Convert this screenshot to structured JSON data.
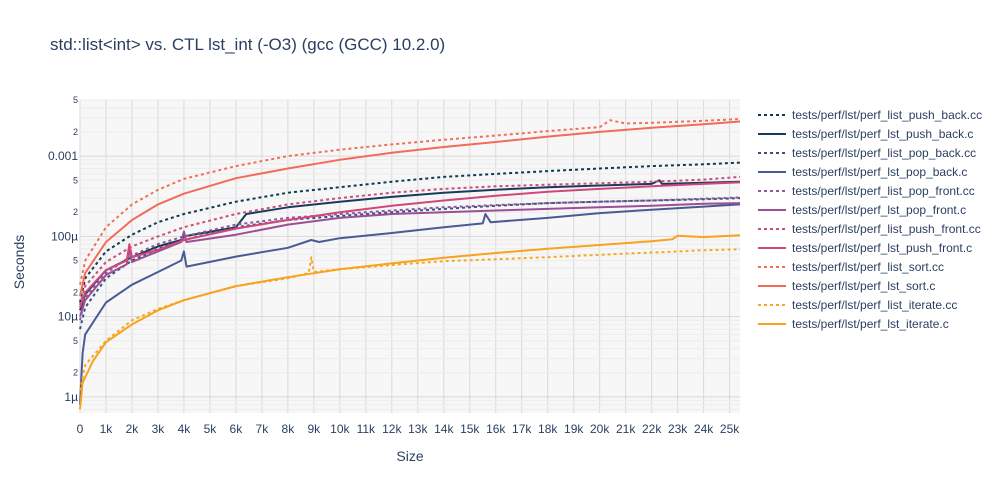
{
  "chart_data": {
    "type": "line",
    "title": "std::list<int> vs. CTL lst_int (-O3) (gcc (GCC) 10.2.0)",
    "xlabel": "Size",
    "ylabel": "Seconds",
    "x_scale": "linear",
    "y_scale": "log",
    "xlim": [
      0,
      25400
    ],
    "ylim": [
      6.3e-07,
      0.005
    ],
    "x_ticks": [
      {
        "v": 0,
        "label": "0"
      },
      {
        "v": 1000,
        "label": "1k"
      },
      {
        "v": 2000,
        "label": "2k"
      },
      {
        "v": 3000,
        "label": "3k"
      },
      {
        "v": 4000,
        "label": "4k"
      },
      {
        "v": 5000,
        "label": "5k"
      },
      {
        "v": 6000,
        "label": "6k"
      },
      {
        "v": 7000,
        "label": "7k"
      },
      {
        "v": 8000,
        "label": "8k"
      },
      {
        "v": 9000,
        "label": "9k"
      },
      {
        "v": 10000,
        "label": "10k"
      },
      {
        "v": 11000,
        "label": "11k"
      },
      {
        "v": 12000,
        "label": "12k"
      },
      {
        "v": 13000,
        "label": "13k"
      },
      {
        "v": 14000,
        "label": "14k"
      },
      {
        "v": 15000,
        "label": "15k"
      },
      {
        "v": 16000,
        "label": "16k"
      },
      {
        "v": 17000,
        "label": "17k"
      },
      {
        "v": 18000,
        "label": "18k"
      },
      {
        "v": 19000,
        "label": "19k"
      },
      {
        "v": 20000,
        "label": "20k"
      },
      {
        "v": 21000,
        "label": "21k"
      },
      {
        "v": 22000,
        "label": "22k"
      },
      {
        "v": 23000,
        "label": "23k"
      },
      {
        "v": 24000,
        "label": "24k"
      },
      {
        "v": 25000,
        "label": "25k"
      }
    ],
    "y_major_ticks": [
      {
        "v": 1e-06,
        "label": "1µ"
      },
      {
        "v": 1e-05,
        "label": "10µ"
      },
      {
        "v": 0.0001,
        "label": "100µ"
      },
      {
        "v": 0.001,
        "label": "0.001"
      }
    ],
    "y_minor_ticks": [
      {
        "v": 2e-06,
        "label": "2"
      },
      {
        "v": 5e-06,
        "label": "5"
      },
      {
        "v": 2e-05,
        "label": "2"
      },
      {
        "v": 5e-05,
        "label": "5"
      },
      {
        "v": 0.0002,
        "label": "2"
      },
      {
        "v": 0.0005,
        "label": "5"
      },
      {
        "v": 0.002,
        "label": "2"
      },
      {
        "v": 0.005,
        "label": "5"
      }
    ],
    "legend_position": "right",
    "series": [
      {
        "name": "tests/perf/lst/perf_list_push_back.cc",
        "color": "#0d3b4f",
        "dash": "dot",
        "x": [
          0,
          200,
          1000,
          2000,
          3000,
          4000,
          6000,
          8000,
          10000,
          12000,
          14000,
          16000,
          18000,
          20000,
          22000,
          24000,
          25400
        ],
        "y": [
          1.5e-05,
          3e-05,
          6.5e-05,
          0.000105,
          0.00015,
          0.00019,
          0.00027,
          0.00035,
          0.00041,
          0.00048,
          0.00055,
          0.0006,
          0.00065,
          0.0007,
          0.00075,
          0.00079,
          0.00083
        ]
      },
      {
        "name": "tests/perf/lst/perf_lst_push_back.c",
        "color": "#1a3a5c",
        "dash": "solid",
        "x": [
          0,
          200,
          1000,
          2000,
          3000,
          3900,
          4000,
          6000,
          6400,
          8000,
          10000,
          12000,
          14000,
          16000,
          18000,
          20000,
          22000,
          22300,
          22400,
          25400
        ],
        "y": [
          1.2e-05,
          1.9e-05,
          3.8e-05,
          5.5e-05,
          7.5e-05,
          9e-05,
          0.0001,
          0.00013,
          0.00019,
          0.00023,
          0.00027,
          0.00031,
          0.00035,
          0.00038,
          0.00041,
          0.00043,
          0.00045,
          0.0005,
          0.00045,
          0.00048
        ]
      },
      {
        "name": "tests/perf/lst/perf_list_pop_back.cc",
        "color": "#3e4f7a",
        "dash": "dot",
        "x": [
          0,
          200,
          1000,
          2000,
          3000,
          4000,
          6000,
          8000,
          10000,
          12000,
          14000,
          16000,
          18000,
          20000,
          22000,
          24000,
          25400
        ],
        "y": [
          7e-06,
          1.3e-05,
          3e-05,
          5e-05,
          7e-05,
          9e-05,
          0.00013,
          0.00016,
          0.00018,
          0.0002,
          0.00022,
          0.00024,
          0.00026,
          0.00027,
          0.00028,
          0.00029,
          0.0003
        ]
      },
      {
        "name": "tests/perf/lst/perf_lst_pop_back.c",
        "color": "#4a5a94",
        "dash": "solid",
        "x": [
          0,
          100,
          200,
          1000,
          2000,
          3000,
          3900,
          4000,
          4100,
          6000,
          8000,
          8900,
          9200,
          10000,
          12000,
          14000,
          15500,
          15600,
          15800,
          18000,
          20000,
          22000,
          24000,
          25400
        ],
        "y": [
          8e-07,
          3.5e-06,
          6e-06,
          1.5e-05,
          2.5e-05,
          3.6e-05,
          5e-05,
          6.5e-05,
          4.2e-05,
          5.6e-05,
          7.2e-05,
          9e-05,
          8.5e-05,
          9.5e-05,
          0.00011,
          0.00013,
          0.000145,
          0.00019,
          0.00015,
          0.00017,
          0.000195,
          0.000215,
          0.000235,
          0.00025
        ]
      },
      {
        "name": "tests/perf/lst/perf_list_pop_front.cc",
        "color": "#8a5a9e",
        "dash": "dot",
        "x": [
          0,
          200,
          1000,
          2000,
          3000,
          4000,
          6000,
          8000,
          10000,
          12000,
          14000,
          16000,
          18000,
          20000,
          22000,
          24000,
          25400
        ],
        "y": [
          9e-06,
          1.7e-05,
          3.5e-05,
          5.8e-05,
          8e-05,
          0.0001,
          0.00014,
          0.00017,
          0.00019,
          0.00021,
          0.00023,
          0.000245,
          0.00026,
          0.00027,
          0.00028,
          0.000295,
          0.000305
        ]
      },
      {
        "name": "tests/perf/lst/perf_lst_pop_front.c",
        "color": "#9b4f96",
        "dash": "solid",
        "x": [
          0,
          200,
          1000,
          1800,
          1900,
          2000,
          3000,
          3900,
          4000,
          4100,
          6000,
          8000,
          10000,
          12000,
          14000,
          16000,
          18000,
          20000,
          22000,
          24000,
          25400
        ],
        "y": [
          1e-05,
          1.6e-05,
          3.3e-05,
          4.5e-05,
          7e-05,
          4.8e-05,
          6.5e-05,
          8.5e-05,
          0.000115,
          8.5e-05,
          0.000105,
          0.00014,
          0.00017,
          0.00019,
          0.0002,
          0.00021,
          0.00022,
          0.00023,
          0.00024,
          0.000255,
          0.00026
        ]
      },
      {
        "name": "tests/perf/lst/perf_list_push_front.cc",
        "color": "#c94f7c",
        "dash": "dot",
        "x": [
          0,
          200,
          1000,
          2000,
          3000,
          4000,
          6000,
          8000,
          10000,
          12000,
          14000,
          16000,
          18000,
          20000,
          22000,
          24000,
          25400
        ],
        "y": [
          1.4e-05,
          2.4e-05,
          4.8e-05,
          7.5e-05,
          0.0001,
          0.00013,
          0.00019,
          0.00025,
          0.0003,
          0.00035,
          0.00039,
          0.00042,
          0.00044,
          0.00046,
          0.00048,
          0.00051,
          0.00055
        ]
      },
      {
        "name": "tests/perf/lst/perf_lst_push_front.c",
        "color": "#d1477a",
        "dash": "solid",
        "x": [
          0,
          200,
          1000,
          1800,
          1900,
          2000,
          3000,
          4000,
          6000,
          8000,
          10000,
          12000,
          14000,
          16000,
          18000,
          20000,
          22000,
          24000,
          25400
        ],
        "y": [
          1.3e-05,
          2e-05,
          3.8e-05,
          5e-05,
          8e-05,
          5.5e-05,
          6.8e-05,
          9e-05,
          0.000125,
          0.00016,
          0.0002,
          0.00024,
          0.00028,
          0.00032,
          0.00036,
          0.00039,
          0.00042,
          0.00045,
          0.00047
        ]
      },
      {
        "name": "tests/perf/lst/perf_list_sort.cc",
        "color": "#f0705a",
        "dash": "dot",
        "x": [
          0,
          200,
          1000,
          2000,
          3000,
          4000,
          6000,
          8000,
          10000,
          12000,
          14000,
          16000,
          18000,
          20000,
          20400,
          21000,
          22000,
          24000,
          25400
        ],
        "y": [
          2.5e-05,
          5e-05,
          0.00013,
          0.00025,
          0.00038,
          0.00052,
          0.00075,
          0.001,
          0.0012,
          0.0014,
          0.0016,
          0.0018,
          0.00205,
          0.0023,
          0.0028,
          0.00255,
          0.0026,
          0.00275,
          0.0029
        ]
      },
      {
        "name": "tests/perf/lst/perf_lst_sort.c",
        "color": "#f26b5b",
        "dash": "solid",
        "x": [
          0,
          200,
          1000,
          2000,
          3000,
          4000,
          6000,
          8000,
          10000,
          12000,
          14000,
          16000,
          18000,
          20000,
          22000,
          24000,
          25400
        ],
        "y": [
          1.8e-05,
          3.5e-05,
          8.5e-05,
          0.00016,
          0.00025,
          0.00034,
          0.00053,
          0.0007,
          0.0009,
          0.0011,
          0.0013,
          0.0015,
          0.00175,
          0.002,
          0.00225,
          0.0025,
          0.0027
        ]
      },
      {
        "name": "tests/perf/lst/perf_list_iterate.cc",
        "color": "#f7a823",
        "dash": "dot",
        "x": [
          0,
          200,
          1000,
          2000,
          3000,
          4000,
          6000,
          8000,
          8800,
          8900,
          9000,
          10000,
          12000,
          14000,
          16000,
          18000,
          20000,
          22000,
          24000,
          25400
        ],
        "y": [
          1.2e-06,
          2.5e-06,
          5e-06,
          9e-06,
          1.25e-05,
          1.6e-05,
          2.4e-05,
          3e-05,
          3.5e-05,
          5.5e-05,
          3.6e-05,
          3.9e-05,
          4.4e-05,
          4.9e-05,
          5.2e-05,
          5.5e-05,
          5.9e-05,
          6.3e-05,
          6.7e-05,
          6.9e-05
        ]
      },
      {
        "name": "tests/perf/lst/perf_lst_iterate.c",
        "color": "#f9a21b",
        "dash": "solid",
        "x": [
          0,
          100,
          500,
          1000,
          2000,
          3000,
          4000,
          6000,
          8000,
          10000,
          12000,
          14000,
          16000,
          18000,
          20000,
          22000,
          22800,
          23000,
          24000,
          25400
        ],
        "y": [
          7e-07,
          1.5e-06,
          2.8e-06,
          4.8e-06,
          8e-06,
          1.2e-05,
          1.6e-05,
          2.4e-05,
          3.1e-05,
          3.9e-05,
          4.6e-05,
          5.4e-05,
          6.2e-05,
          7e-05,
          7.8e-05,
          8.7e-05,
          9.2e-05,
          0.000102,
          9.8e-05,
          0.000103
        ]
      }
    ]
  }
}
